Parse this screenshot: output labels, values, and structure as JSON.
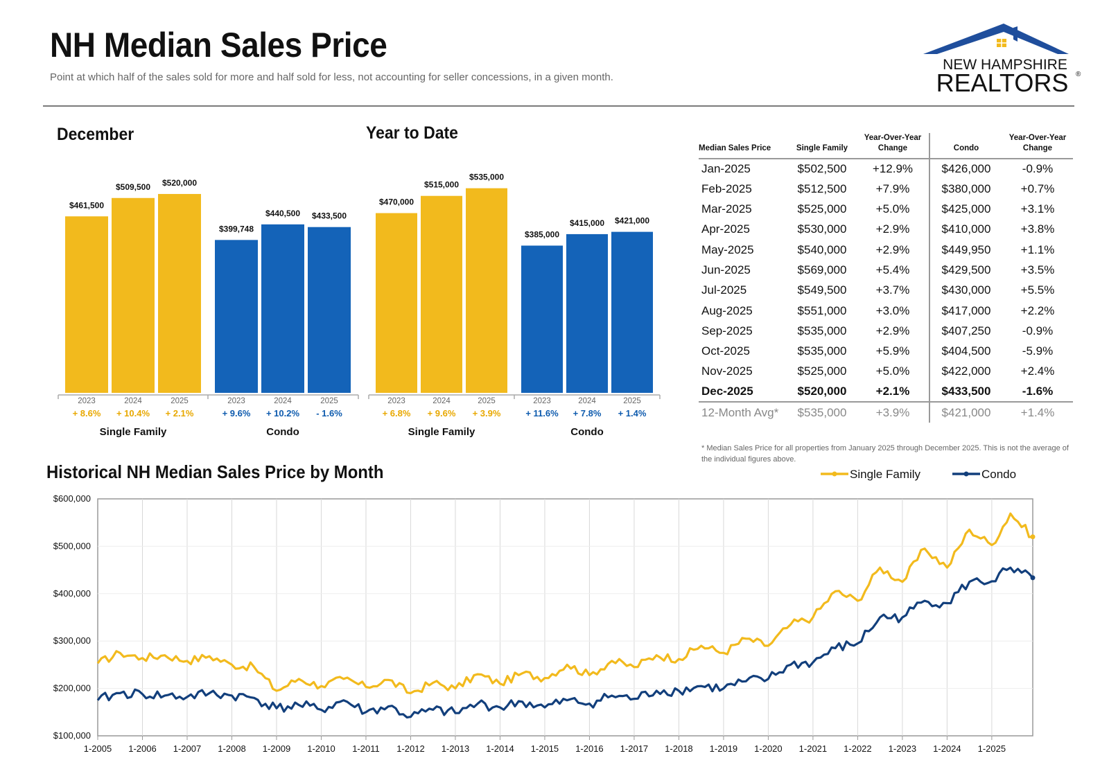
{
  "header": {
    "title": "NH Median Sales Price",
    "subtitle": "Point at which half of the sales sold for more and half sold for less, not accounting for seller concessions, in a given month.",
    "logo_line1": "NEW HAMPSHIRE",
    "logo_line2": "REALTORS",
    "logo_mark": "®"
  },
  "colors": {
    "single_family": "#F2BA1D",
    "condo": "#1463B8",
    "condo_line": "#123F7C",
    "axis": "#999999",
    "grid": "#D8D8D8"
  },
  "chart_data": [
    {
      "type": "bar",
      "title": "December",
      "groups": [
        {
          "name": "Single Family",
          "categories": [
            "2023",
            "2024",
            "2025"
          ],
          "values": [
            461500,
            509500,
            520000
          ],
          "labels": [
            "$461,500",
            "$509,500",
            "$520,000"
          ],
          "changes": [
            "+ 8.6%",
            "+ 10.4%",
            "+ 2.1%"
          ]
        },
        {
          "name": "Condo",
          "categories": [
            "2023",
            "2024",
            "2025"
          ],
          "values": [
            399748,
            440500,
            433500
          ],
          "labels": [
            "$399,748",
            "$440,500",
            "$433,500"
          ],
          "changes": [
            "+ 9.6%",
            "+ 10.2%",
            "- 1.6%"
          ]
        }
      ]
    },
    {
      "type": "bar",
      "title": "Year to Date",
      "groups": [
        {
          "name": "Single Family",
          "categories": [
            "2023",
            "2024",
            "2025"
          ],
          "values": [
            470000,
            515000,
            535000
          ],
          "labels": [
            "$470,000",
            "$515,000",
            "$535,000"
          ],
          "changes": [
            "+ 6.8%",
            "+ 9.6%",
            "+ 3.9%"
          ]
        },
        {
          "name": "Condo",
          "categories": [
            "2023",
            "2024",
            "2025"
          ],
          "values": [
            385000,
            415000,
            421000
          ],
          "labels": [
            "$385,000",
            "$415,000",
            "$421,000"
          ],
          "changes": [
            "+ 11.6%",
            "+ 7.8%",
            "+ 1.4%"
          ]
        }
      ]
    },
    {
      "type": "table",
      "columns": [
        "Median Sales Price",
        "Single Family",
        "Year-Over-Year Change",
        "Condo",
        "Year-Over-Year Change"
      ],
      "rows": [
        [
          "Jan-2025",
          "$502,500",
          "+12.9%",
          "$426,000",
          "-0.9%"
        ],
        [
          "Feb-2025",
          "$512,500",
          "+7.9%",
          "$380,000",
          "+0.7%"
        ],
        [
          "Mar-2025",
          "$525,000",
          "+5.0%",
          "$425,000",
          "+3.1%"
        ],
        [
          "Apr-2025",
          "$530,000",
          "+2.9%",
          "$410,000",
          "+3.8%"
        ],
        [
          "May-2025",
          "$540,000",
          "+2.9%",
          "$449,950",
          "+1.1%"
        ],
        [
          "Jun-2025",
          "$569,000",
          "+5.4%",
          "$429,500",
          "+3.5%"
        ],
        [
          "Jul-2025",
          "$549,500",
          "+3.7%",
          "$430,000",
          "+5.5%"
        ],
        [
          "Aug-2025",
          "$551,000",
          "+3.0%",
          "$417,000",
          "+2.2%"
        ],
        [
          "Sep-2025",
          "$535,000",
          "+2.9%",
          "$407,250",
          "-0.9%"
        ],
        [
          "Oct-2025",
          "$535,000",
          "+5.9%",
          "$404,500",
          "-5.9%"
        ],
        [
          "Nov-2025",
          "$525,000",
          "+5.0%",
          "$422,000",
          "+2.4%"
        ],
        [
          "Dec-2025",
          "$520,000",
          "+2.1%",
          "$433,500",
          "-1.6%"
        ]
      ],
      "average_row": [
        "12-Month Avg*",
        "$535,000",
        "+3.9%",
        "$421,000",
        "+1.4%"
      ],
      "footnote": "* Median Sales Price for all properties from January 2025 through December 2025. This is not the average of the individual figures above."
    },
    {
      "type": "line",
      "title": "Historical NH Median Sales Price by Month",
      "x_ticks": [
        "1-2005",
        "1-2006",
        "1-2007",
        "1-2008",
        "1-2009",
        "1-2010",
        "1-2011",
        "1-2012",
        "1-2013",
        "1-2014",
        "1-2015",
        "1-2016",
        "1-2017",
        "1-2018",
        "1-2019",
        "1-2020",
        "1-2021",
        "1-2022",
        "1-2023",
        "1-2024",
        "1-2025"
      ],
      "x_range": [
        "Jan 2005",
        "Dec 2025"
      ],
      "y_ticks": [
        "$100,000",
        "$200,000",
        "$300,000",
        "$400,000",
        "$500,000",
        "$600,000"
      ],
      "ylim": [
        100000,
        600000
      ],
      "grid": "vertical gridlines at each January",
      "legend": "top-right",
      "series": [
        {
          "name": "Single Family",
          "sampled_points": [
            [
              "2005-01",
              253000
            ],
            [
              "2005-07",
              275000
            ],
            [
              "2006-01",
              264000
            ],
            [
              "2006-07",
              270000
            ],
            [
              "2007-01",
              258000
            ],
            [
              "2007-07",
              268000
            ],
            [
              "2008-01",
              250000
            ],
            [
              "2008-07",
              245000
            ],
            [
              "2009-01",
              195000
            ],
            [
              "2009-07",
              220000
            ],
            [
              "2010-01",
              205000
            ],
            [
              "2010-07",
              220000
            ],
            [
              "2011-01",
              203000
            ],
            [
              "2011-07",
              218000
            ],
            [
              "2012-01",
              190000
            ],
            [
              "2012-07",
              212000
            ],
            [
              "2013-01",
              200000
            ],
            [
              "2013-07",
              230000
            ],
            [
              "2014-01",
              210000
            ],
            [
              "2014-07",
              232000
            ],
            [
              "2015-01",
              222000
            ],
            [
              "2015-07",
              250000
            ],
            [
              "2016-01",
              228000
            ],
            [
              "2016-07",
              258000
            ],
            [
              "2017-01",
              245000
            ],
            [
              "2017-07",
              270000
            ],
            [
              "2018-01",
              262000
            ],
            [
              "2018-07",
              290000
            ],
            [
              "2019-01",
              275000
            ],
            [
              "2019-07",
              305000
            ],
            [
              "2020-01",
              290000
            ],
            [
              "2020-07",
              335000
            ],
            [
              "2021-01",
              350000
            ],
            [
              "2021-07",
              405000
            ],
            [
              "2022-01",
              385000
            ],
            [
              "2022-07",
              455000
            ],
            [
              "2023-01",
              425000
            ],
            [
              "2023-07",
              495000
            ],
            [
              "2024-01",
              455000
            ],
            [
              "2024-07",
              535000
            ],
            [
              "2025-01",
              502500
            ],
            [
              "2025-06",
              569000
            ],
            [
              "2025-12",
              520000
            ]
          ]
        },
        {
          "name": "Condo",
          "sampled_points": [
            [
              "2005-01",
              175000
            ],
            [
              "2005-07",
              190000
            ],
            [
              "2006-01",
              188000
            ],
            [
              "2006-07",
              185000
            ],
            [
              "2007-01",
              182000
            ],
            [
              "2007-07",
              190000
            ],
            [
              "2008-01",
              185000
            ],
            [
              "2008-07",
              180000
            ],
            [
              "2009-01",
              158000
            ],
            [
              "2009-07",
              165000
            ],
            [
              "2010-01",
              155000
            ],
            [
              "2010-07",
              175000
            ],
            [
              "2011-01",
              150000
            ],
            [
              "2011-07",
              162000
            ],
            [
              "2012-01",
              140000
            ],
            [
              "2012-07",
              155000
            ],
            [
              "2013-01",
              148000
            ],
            [
              "2013-07",
              168000
            ],
            [
              "2014-01",
              160000
            ],
            [
              "2014-07",
              172000
            ],
            [
              "2015-01",
              160000
            ],
            [
              "2015-07",
              175000
            ],
            [
              "2016-01",
              168000
            ],
            [
              "2016-07",
              185000
            ],
            [
              "2017-01",
              178000
            ],
            [
              "2017-07",
              195000
            ],
            [
              "2018-01",
              195000
            ],
            [
              "2018-07",
              205000
            ],
            [
              "2019-01",
              200000
            ],
            [
              "2019-07",
              215000
            ],
            [
              "2020-01",
              220000
            ],
            [
              "2020-07",
              250000
            ],
            [
              "2021-01",
              255000
            ],
            [
              "2021-07",
              285000
            ],
            [
              "2022-01",
              295000
            ],
            [
              "2022-07",
              350000
            ],
            [
              "2023-01",
              350000
            ],
            [
              "2023-07",
              385000
            ],
            [
              "2024-01",
              380000
            ],
            [
              "2024-07",
              425000
            ],
            [
              "2025-01",
              426000
            ],
            [
              "2025-05",
              449950
            ],
            [
              "2025-12",
              433500
            ]
          ]
        }
      ]
    }
  ]
}
